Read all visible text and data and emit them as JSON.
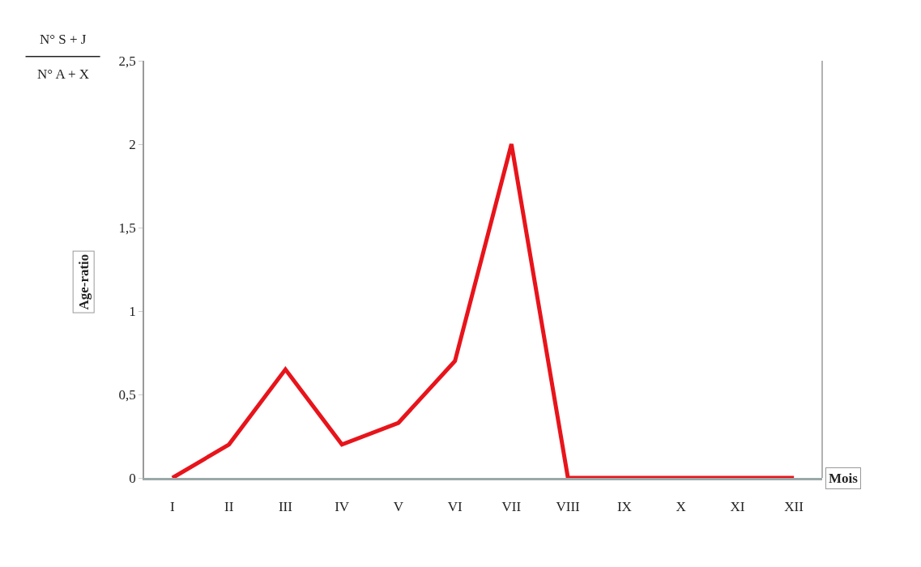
{
  "chart_data": {
    "type": "line",
    "categories": [
      "I",
      "II",
      "III",
      "IV",
      "V",
      "VI",
      "VII",
      "VIII",
      "IX",
      "X",
      "XI",
      "XII"
    ],
    "series": [
      {
        "color": "#e8141b",
        "values": [
          0,
          0.2,
          0.65,
          0.2,
          0.33,
          0.7,
          2.0,
          0,
          0,
          0,
          0,
          0
        ]
      }
    ],
    "xlabel": "Mois",
    "ylabel": "Age-ratio",
    "annotations": [
      "N° S + J",
      "N° A + X"
    ],
    "ylim": [
      0,
      2.5
    ],
    "yticks": [
      0,
      {
        "value": 0.5,
        "label": "0,5"
      },
      1,
      {
        "value": 1.5,
        "label": "1,5"
      },
      2,
      {
        "value": 2.5,
        "label": "2,5"
      }
    ],
    "legend": false,
    "marker": "none",
    "line_style": "solid"
  }
}
